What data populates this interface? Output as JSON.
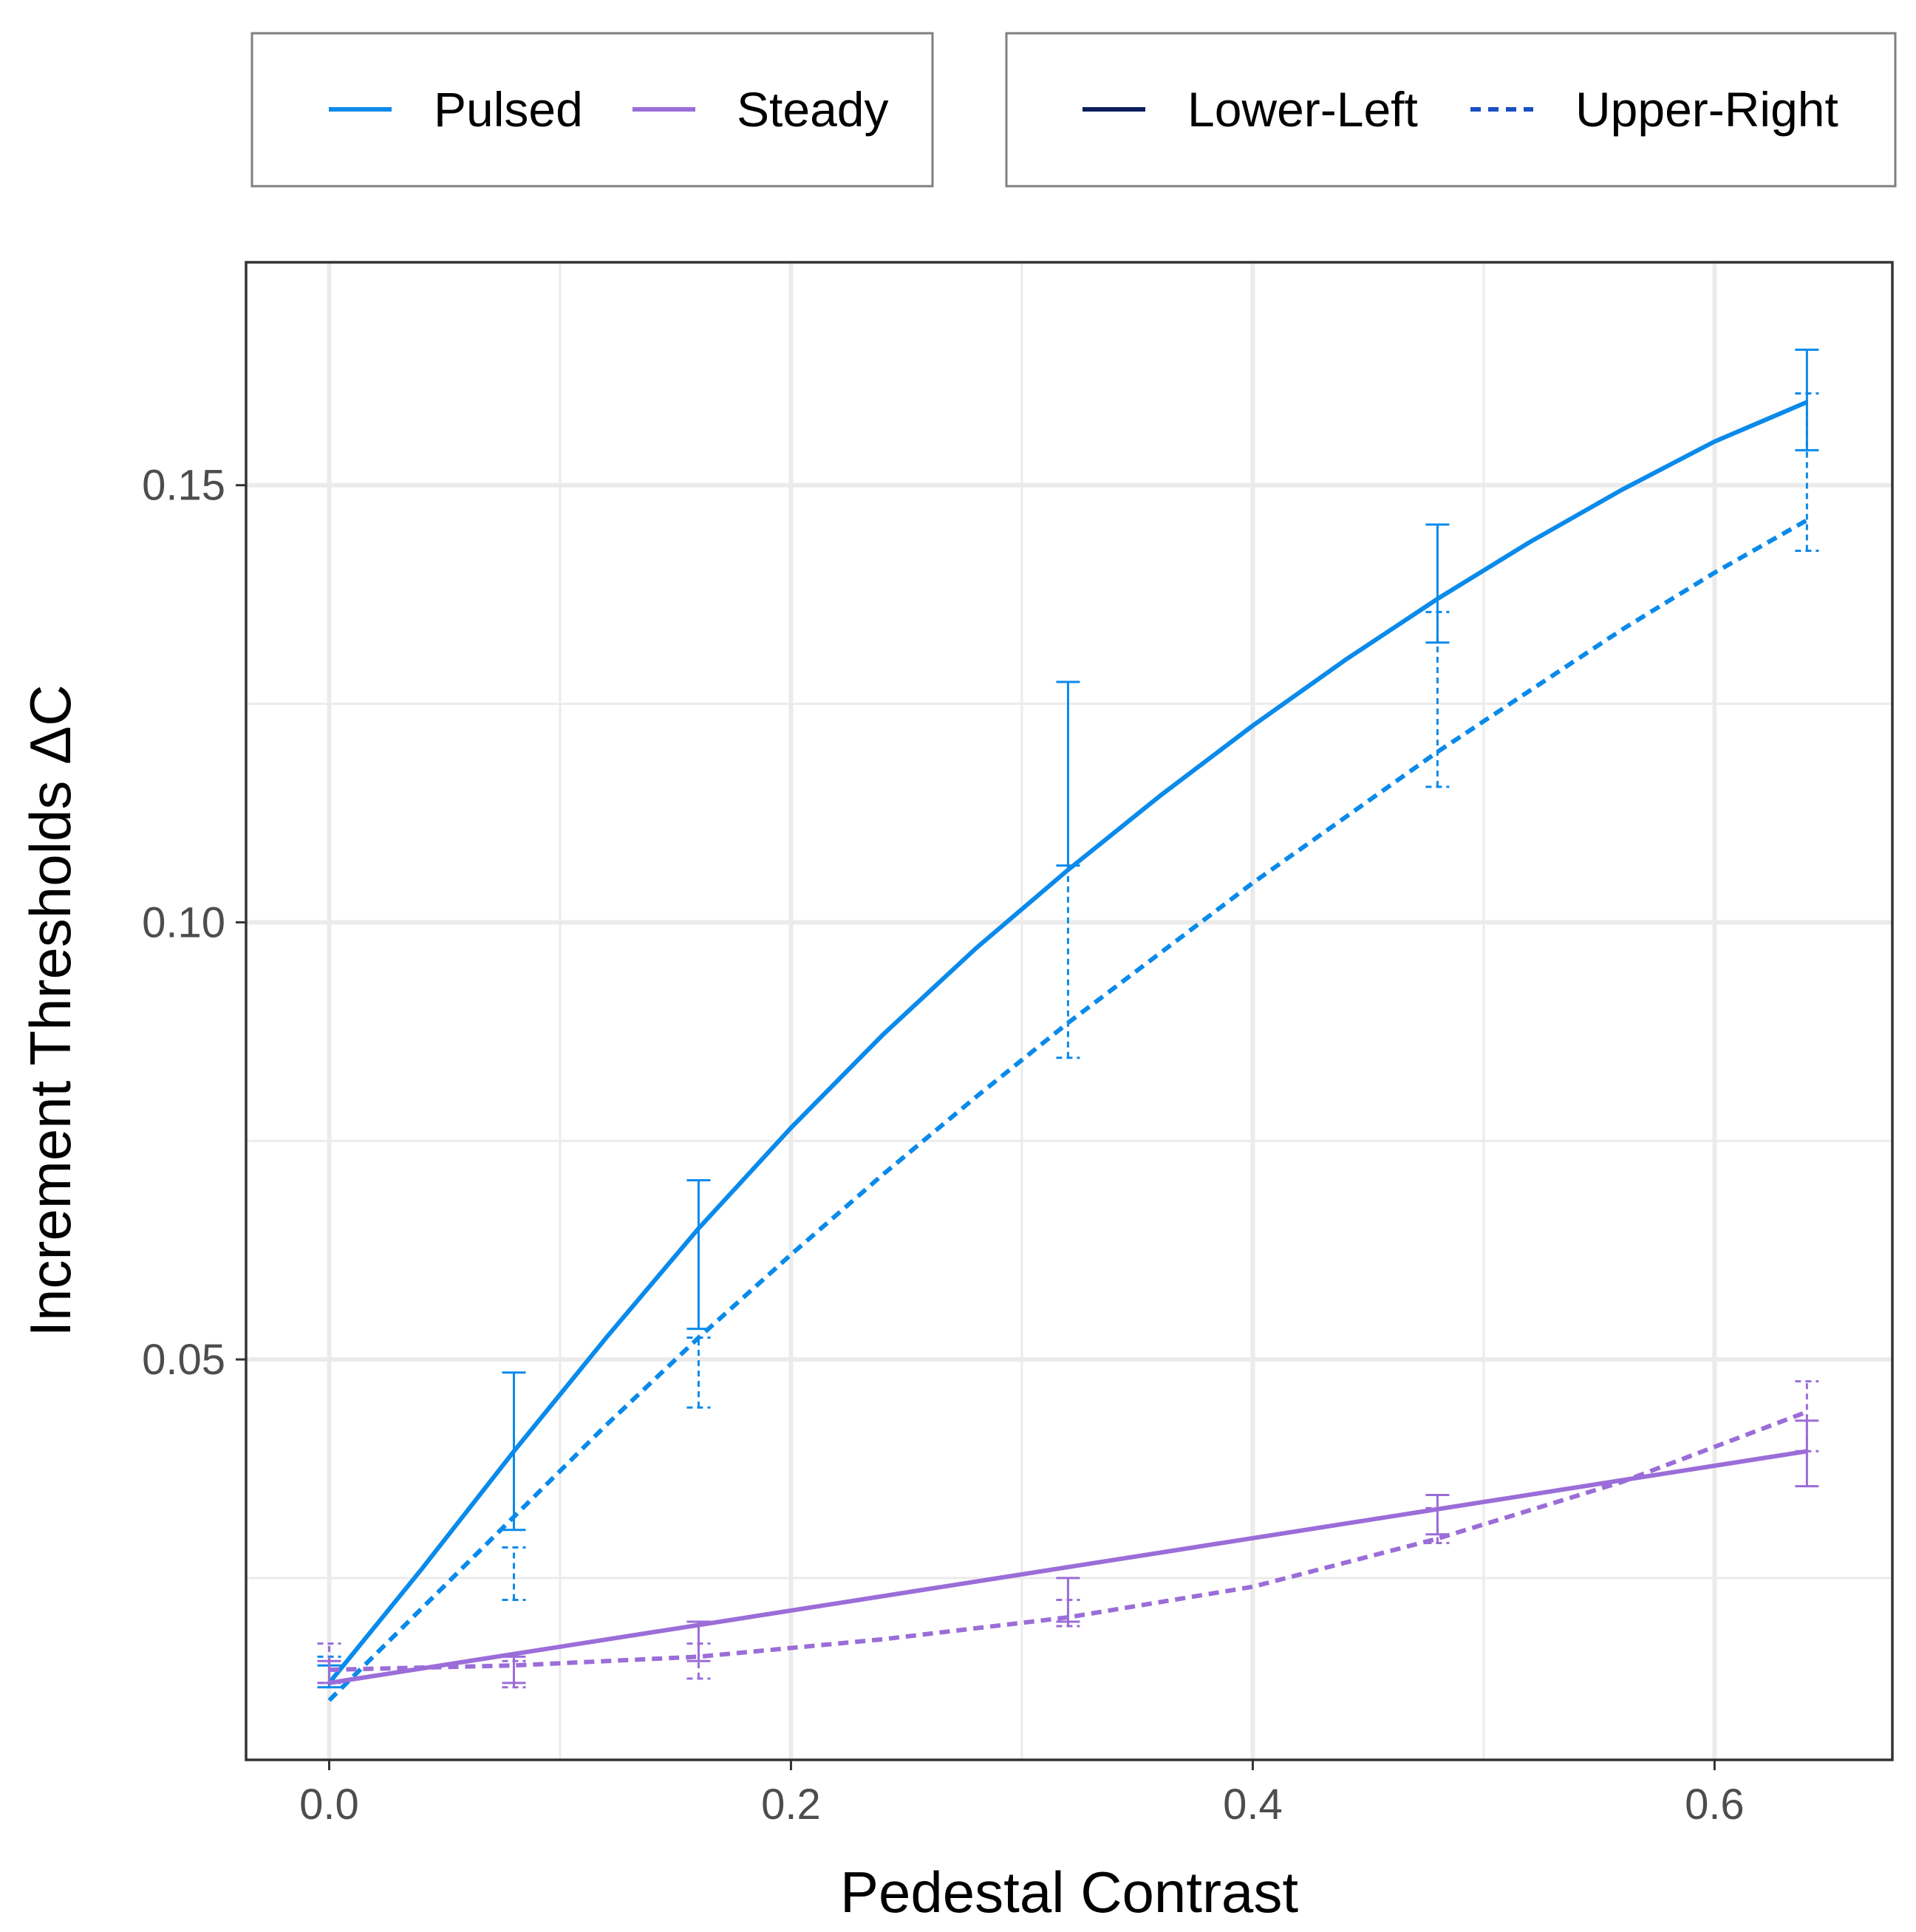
{
  "colors": {
    "pulsed": "#0A8AEB",
    "steady": "#9B6DD8",
    "lower_left_key": "#0B1E5B",
    "upper_right_key": "#1A4FC4",
    "grid": "#EBEBEB",
    "panel_border": "#333333",
    "legend_border": "#7F7F7F",
    "tick_label": "#4D4D4D"
  },
  "legends": [
    {
      "items": [
        {
          "label": "Pulsed",
          "color_key": "pulsed",
          "dashed": false
        },
        {
          "label": "Steady",
          "color_key": "steady",
          "dashed": false
        }
      ]
    },
    {
      "items": [
        {
          "label": "Lower-Left",
          "color_key": "lower_left_key",
          "dashed": false
        },
        {
          "label": "Upper-Right",
          "color_key": "upper_right_key",
          "dashed": true
        }
      ]
    }
  ],
  "chart_data": {
    "type": "line",
    "xlabel": "Pedestal Contrast",
    "ylabel": "Increment Thresholds ΔC",
    "xlim": [
      -0.036,
      0.677
    ],
    "ylim": [
      0.0042,
      0.1755
    ],
    "x_ticks": [
      0.0,
      0.2,
      0.4,
      0.6
    ],
    "x_tick_labels": [
      "0.0",
      "0.2",
      "0.4",
      "0.6"
    ],
    "x_minor_ticks": [
      0.1,
      0.3,
      0.5
    ],
    "y_ticks": [
      0.05,
      0.1,
      0.15
    ],
    "y_tick_labels": [
      "0.05",
      "0.10",
      "0.15"
    ],
    "y_minor_ticks": [
      0.025,
      0.075,
      0.125
    ],
    "grid": true,
    "legend_position": "top",
    "series": [
      {
        "name": "Pulsed Lower-Left",
        "color_key": "pulsed",
        "dashed": false,
        "points": [
          {
            "x": 0.0,
            "y": 0.0135,
            "ylo": 0.0125,
            "yhi": 0.015
          },
          {
            "x": 0.08,
            "y": 0.0395,
            "ylo": 0.0305,
            "yhi": 0.0485
          },
          {
            "x": 0.16,
            "y": 0.0665,
            "ylo": 0.0535,
            "yhi": 0.0705
          },
          {
            "x": 0.32,
            "y": 0.1105,
            "ylo": 0.1065,
            "yhi": 0.1275
          },
          {
            "x": 0.48,
            "y": 0.14,
            "ylo": 0.132,
            "yhi": 0.1455
          },
          {
            "x": 0.64,
            "y": 0.1595,
            "ylo": 0.154,
            "yhi": 0.1655
          }
        ],
        "fit": [
          [
            0.0,
            0.013
          ],
          [
            0.04,
            0.026
          ],
          [
            0.08,
            0.0395
          ],
          [
            0.12,
            0.0525
          ],
          [
            0.16,
            0.065
          ],
          [
            0.2,
            0.0765
          ],
          [
            0.24,
            0.0872
          ],
          [
            0.28,
            0.097
          ],
          [
            0.32,
            0.106
          ],
          [
            0.36,
            0.1145
          ],
          [
            0.4,
            0.1225
          ],
          [
            0.44,
            0.13
          ],
          [
            0.48,
            0.137
          ],
          [
            0.52,
            0.1435
          ],
          [
            0.56,
            0.1495
          ],
          [
            0.6,
            0.155
          ],
          [
            0.64,
            0.1595
          ]
        ]
      },
      {
        "name": "Pulsed Upper-Right",
        "color_key": "pulsed",
        "dashed": true,
        "points": [
          {
            "x": 0.0,
            "y": 0.014,
            "ylo": 0.013,
            "yhi": 0.016
          },
          {
            "x": 0.08,
            "y": 0.025,
            "ylo": 0.0225,
            "yhi": 0.0285
          },
          {
            "x": 0.16,
            "y": 0.048,
            "ylo": 0.0445,
            "yhi": 0.0525
          },
          {
            "x": 0.32,
            "y": 0.0955,
            "ylo": 0.0845,
            "yhi": 0.1065
          },
          {
            "x": 0.48,
            "y": 0.1255,
            "ylo": 0.1155,
            "yhi": 0.1355
          },
          {
            "x": 0.64,
            "y": 0.1525,
            "ylo": 0.1425,
            "yhi": 0.1605
          }
        ],
        "fit": [
          [
            0.0,
            0.011
          ],
          [
            0.04,
            0.0215
          ],
          [
            0.08,
            0.032
          ],
          [
            0.12,
            0.0425
          ],
          [
            0.16,
            0.0525
          ],
          [
            0.2,
            0.062
          ],
          [
            0.24,
            0.0712
          ],
          [
            0.28,
            0.08
          ],
          [
            0.32,
            0.0885
          ],
          [
            0.36,
            0.0965
          ],
          [
            0.4,
            0.1045
          ],
          [
            0.44,
            0.112
          ],
          [
            0.48,
            0.1195
          ],
          [
            0.52,
            0.1265
          ],
          [
            0.56,
            0.1335
          ],
          [
            0.6,
            0.14
          ],
          [
            0.64,
            0.146
          ]
        ]
      },
      {
        "name": "Steady Lower-Left",
        "color_key": "steady",
        "dashed": false,
        "points": [
          {
            "x": 0.0,
            "y": 0.014,
            "ylo": 0.013,
            "yhi": 0.0155
          },
          {
            "x": 0.08,
            "y": 0.0145,
            "ylo": 0.013,
            "yhi": 0.016
          },
          {
            "x": 0.16,
            "y": 0.0175,
            "ylo": 0.0155,
            "yhi": 0.02
          },
          {
            "x": 0.32,
            "y": 0.0225,
            "ylo": 0.02,
            "yhi": 0.025
          },
          {
            "x": 0.48,
            "y": 0.032,
            "ylo": 0.03,
            "yhi": 0.0345
          },
          {
            "x": 0.64,
            "y": 0.0395,
            "ylo": 0.0355,
            "yhi": 0.043
          }
        ],
        "fit": [
          [
            0.0,
            0.013
          ],
          [
            0.64,
            0.0395
          ]
        ]
      },
      {
        "name": "Steady Upper-Right",
        "color_key": "steady",
        "dashed": true,
        "points": [
          {
            "x": 0.0,
            "y": 0.015,
            "ylo": 0.013,
            "yhi": 0.0175
          },
          {
            "x": 0.08,
            "y": 0.014,
            "ylo": 0.0125,
            "yhi": 0.0155
          },
          {
            "x": 0.16,
            "y": 0.0155,
            "ylo": 0.0135,
            "yhi": 0.0175
          },
          {
            "x": 0.32,
            "y": 0.021,
            "ylo": 0.0195,
            "yhi": 0.0225
          },
          {
            "x": 0.48,
            "y": 0.031,
            "ylo": 0.029,
            "yhi": 0.033
          },
          {
            "x": 0.64,
            "y": 0.044,
            "ylo": 0.0395,
            "yhi": 0.0475
          }
        ],
        "fit": [
          [
            0.0,
            0.0145
          ],
          [
            0.08,
            0.015
          ],
          [
            0.16,
            0.016
          ],
          [
            0.24,
            0.018
          ],
          [
            0.32,
            0.0205
          ],
          [
            0.4,
            0.024
          ],
          [
            0.48,
            0.0295
          ],
          [
            0.56,
            0.036
          ],
          [
            0.64,
            0.044
          ]
        ]
      }
    ]
  }
}
